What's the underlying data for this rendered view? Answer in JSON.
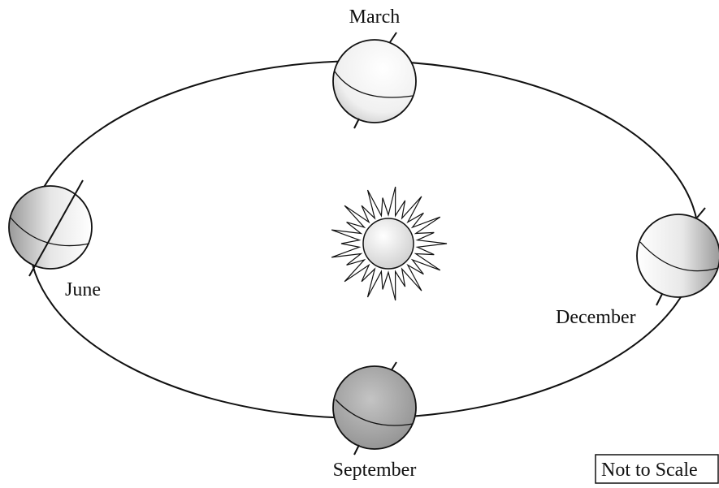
{
  "labels": {
    "march": "March",
    "june": "June",
    "september": "September",
    "december": "December"
  },
  "note": "Not to Scale"
}
